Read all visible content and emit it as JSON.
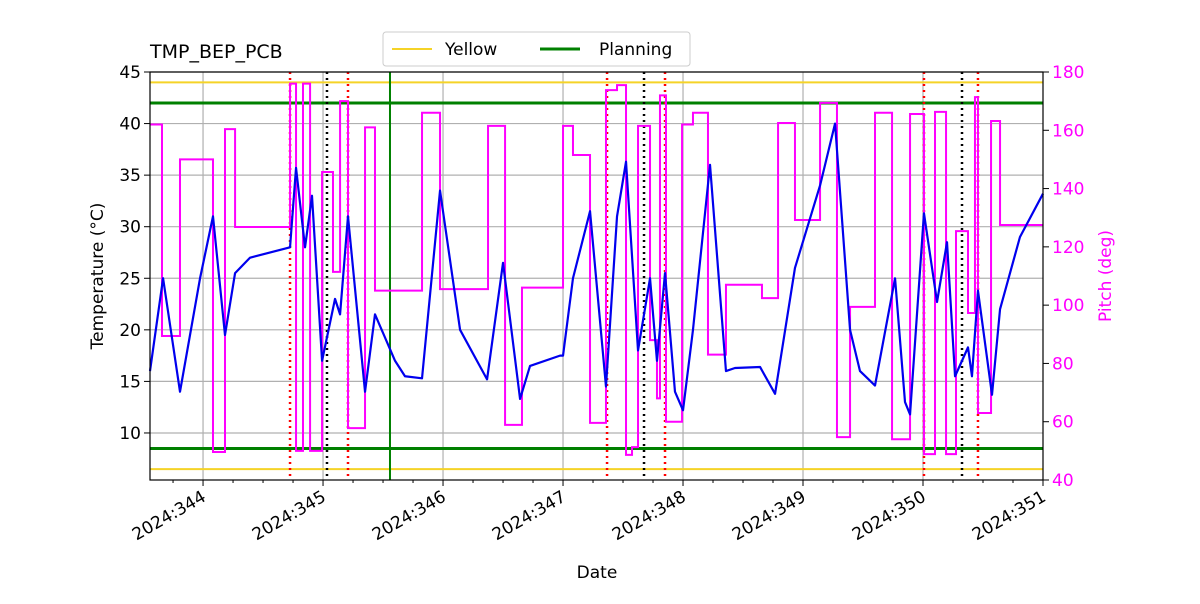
{
  "chart_data": {
    "type": "line",
    "title": "TMP_BEP_PCB",
    "xlabel": "Date",
    "ylabel": "Temperature ($^\\circ$C)",
    "ylabel_display": "Temperature (°C)",
    "y2label": "Pitch (deg)",
    "xlim": [
      343.558,
      351.0
    ],
    "ylim": [
      5.44,
      45
    ],
    "y2lim": [
      40,
      180
    ],
    "xticks": [
      344,
      345,
      346,
      347,
      348,
      349,
      350,
      351
    ],
    "xtick_labels": [
      "2024:344",
      "2024:345",
      "2024:346",
      "2024:347",
      "2024:348",
      "2024:349",
      "2024:350",
      "2024:351"
    ],
    "yticks": [
      10,
      15,
      20,
      25,
      30,
      35,
      40,
      45
    ],
    "ytick_labels": [
      "10",
      "15",
      "20",
      "25",
      "30",
      "35",
      "40",
      "45"
    ],
    "y2ticks": [
      40,
      60,
      80,
      100,
      120,
      140,
      160,
      180
    ],
    "y2tick_labels": [
      "40",
      "60",
      "80",
      "100",
      "120",
      "140",
      "160",
      "180"
    ],
    "grid": true,
    "legend": {
      "placement": "top-center",
      "entries": [
        {
          "label": "Yellow",
          "color": "#f5d327"
        },
        {
          "label": "Planning",
          "color": "#008000"
        }
      ]
    },
    "limits": {
      "yellow": [
        44,
        6.5
      ],
      "planning": [
        42,
        8.5
      ]
    },
    "colors": {
      "temperature": "#0000ee",
      "pitch": "#ff00ff",
      "red_marker": "#ff0000",
      "black_marker": "#000000",
      "green_marker": "#008000",
      "grid": "#b0b0b0"
    },
    "vlines_red": [
      344.725,
      345.208,
      347.367,
      347.85,
      350.008,
      350.458
    ],
    "vlines_black": [
      345.033,
      347.675,
      350.325
    ],
    "vlines_green": [
      345.558
    ],
    "series": [
      {
        "name": "Temperature",
        "axis": "left",
        "x": [
          343.558,
          343.667,
          343.808,
          343.975,
          344.083,
          344.183,
          344.267,
          344.392,
          344.725,
          344.775,
          344.85,
          344.908,
          344.992,
          345.1,
          345.142,
          345.208,
          345.35,
          345.433,
          345.6,
          345.683,
          345.825,
          345.975,
          346.142,
          346.367,
          346.5,
          346.642,
          346.725,
          346.975,
          347.0,
          347.083,
          347.225,
          347.358,
          347.45,
          347.525,
          347.625,
          347.725,
          347.783,
          347.85,
          347.933,
          348.0,
          348.083,
          348.225,
          348.358,
          348.433,
          348.642,
          348.767,
          348.933,
          349.142,
          349.267,
          349.392,
          349.475,
          349.6,
          349.767,
          349.85,
          349.892,
          350.008,
          350.117,
          350.2,
          350.267,
          350.375,
          350.408,
          350.458,
          350.575,
          350.642,
          350.808,
          351.0
        ],
        "y": [
          16,
          25,
          14,
          25,
          31,
          19.5,
          25.5,
          27,
          28,
          35.7,
          28,
          33,
          17,
          23,
          21.5,
          31,
          14,
          21.5,
          17,
          15.5,
          15.3,
          33.5,
          20,
          15.2,
          26.5,
          13.3,
          16.5,
          17.5,
          17.5,
          25,
          31.5,
          14.5,
          31,
          36.3,
          18,
          25,
          17,
          25.5,
          14,
          12.2,
          20,
          36,
          16,
          16.3,
          16.4,
          13.8,
          26,
          34,
          40,
          20,
          16,
          14.6,
          25,
          13,
          11.8,
          31.3,
          22.7,
          28.5,
          15.5,
          18.3,
          15.5,
          23.8,
          13.7,
          22,
          29,
          33.2
        ]
      },
      {
        "name": "Pitch",
        "axis": "right",
        "step": true,
        "x": [
          343.558,
          343.658,
          343.808,
          344.083,
          344.183,
          344.267,
          344.725,
          344.775,
          344.833,
          344.892,
          344.992,
          345.083,
          345.142,
          345.208,
          345.35,
          345.433,
          345.825,
          345.975,
          346.375,
          346.517,
          346.658,
          347.0,
          347.083,
          347.225,
          347.358,
          347.45,
          347.525,
          347.575,
          347.625,
          347.725,
          347.783,
          347.808,
          347.858,
          347.992,
          348.083,
          348.208,
          348.358,
          348.658,
          348.792,
          348.933,
          349.142,
          349.283,
          349.392,
          349.6,
          349.742,
          349.892,
          350.008,
          350.1,
          350.192,
          350.275,
          350.375,
          350.433,
          350.458,
          350.567,
          350.642,
          351.0
        ],
        "y": [
          162,
          89.4,
          150,
          49.6,
          160.4,
          126.8,
          176,
          50,
          176,
          50,
          145.7,
          111.4,
          170,
          57.8,
          161,
          105,
          166,
          105.5,
          161.5,
          58.9,
          106,
          161.5,
          151.5,
          59.6,
          173.8,
          175.5,
          48.6,
          51.3,
          161.5,
          88,
          68,
          172,
          60,
          162,
          166,
          83,
          107,
          102.4,
          162.5,
          129.2,
          169.4,
          54.7,
          99.4,
          166,
          54,
          165.6,
          48.9,
          166.3,
          48.9,
          125.4,
          97.3,
          171.4,
          63,
          163.2,
          127.5,
          127.5
        ]
      }
    ]
  }
}
